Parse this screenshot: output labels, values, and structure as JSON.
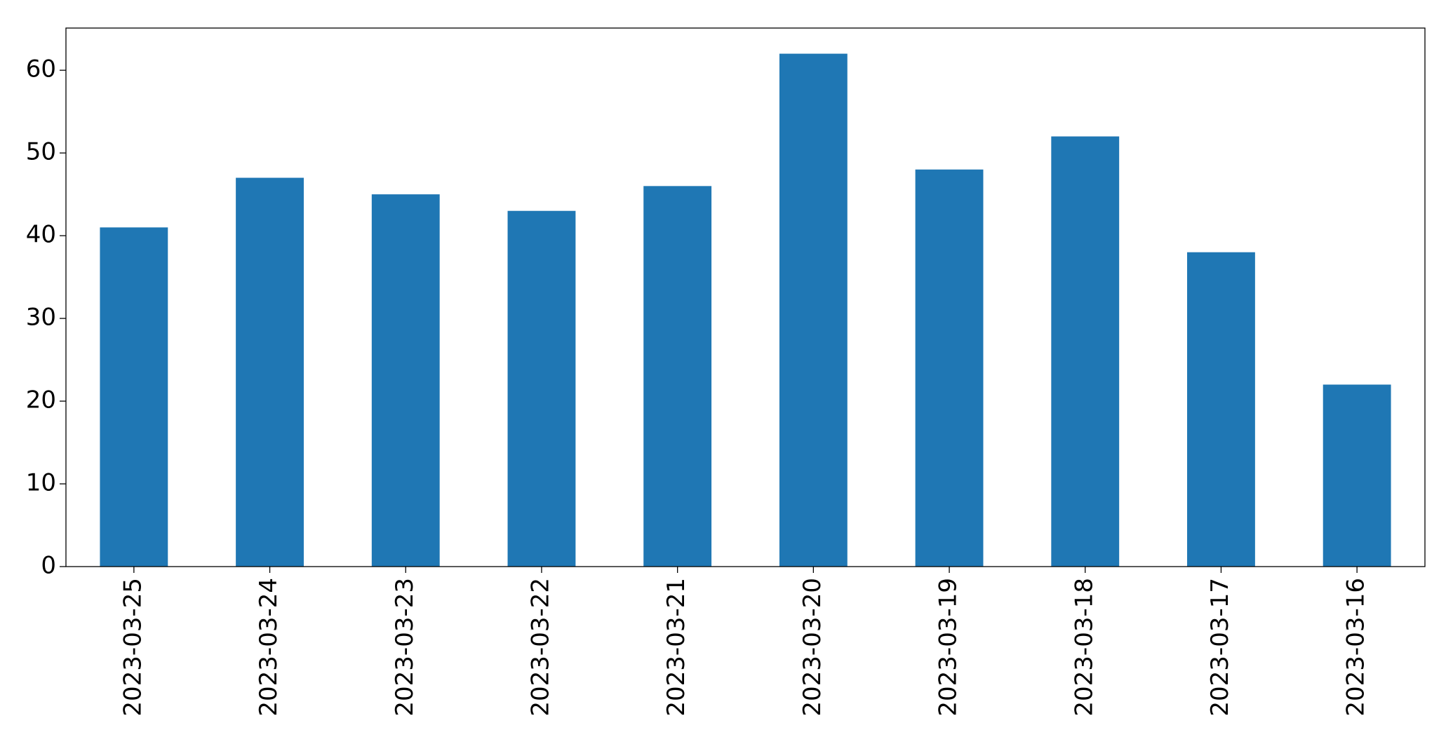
{
  "chart_data": {
    "type": "bar",
    "categories": [
      "2023-03-25",
      "2023-03-24",
      "2023-03-23",
      "2023-03-22",
      "2023-03-21",
      "2023-03-20",
      "2023-03-19",
      "2023-03-18",
      "2023-03-17",
      "2023-03-16"
    ],
    "values": [
      41,
      47,
      45,
      43,
      46,
      62,
      48,
      52,
      38,
      22
    ],
    "color": "#1f77b4",
    "ylim": [
      0,
      65.1
    ],
    "yticks": [
      0,
      10,
      20,
      30,
      40,
      50,
      60
    ]
  }
}
